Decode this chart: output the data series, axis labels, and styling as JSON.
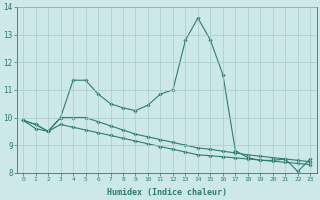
{
  "xlabel": "Humidex (Indice chaleur)",
  "x": [
    0,
    1,
    2,
    3,
    4,
    5,
    6,
    7,
    8,
    9,
    10,
    11,
    12,
    13,
    14,
    15,
    16,
    17,
    18,
    19,
    20,
    21,
    22,
    23
  ],
  "line1": [
    9.9,
    9.75,
    9.5,
    10.0,
    11.35,
    11.35,
    10.85,
    10.5,
    10.35,
    10.25,
    10.45,
    10.85,
    11.0,
    12.8,
    13.6,
    12.8,
    11.55,
    8.8,
    8.55,
    8.45,
    8.45,
    8.5,
    8.05,
    8.5
  ],
  "line2": [
    9.9,
    9.75,
    9.5,
    10.0,
    10.0,
    10.0,
    9.85,
    9.7,
    9.55,
    9.4,
    9.3,
    9.2,
    9.1,
    9.0,
    8.9,
    8.85,
    8.78,
    8.72,
    8.65,
    8.6,
    8.55,
    8.5,
    8.45,
    8.4
  ],
  "line3": [
    9.9,
    9.6,
    9.5,
    9.75,
    9.65,
    9.55,
    9.45,
    9.35,
    9.25,
    9.15,
    9.05,
    8.95,
    8.85,
    8.75,
    8.65,
    8.62,
    8.58,
    8.54,
    8.5,
    8.46,
    8.42,
    8.38,
    8.34,
    8.3
  ],
  "line_color": "#2d7d6e",
  "bg_color": "#cce8e8",
  "grid_color": "#aacccc",
  "ylim": [
    8,
    14
  ],
  "xlim": [
    -0.5,
    23.5
  ],
  "yticks": [
    8,
    9,
    10,
    11,
    12,
    13,
    14
  ],
  "xticks": [
    0,
    1,
    2,
    3,
    4,
    5,
    6,
    7,
    8,
    9,
    10,
    11,
    12,
    13,
    14,
    15,
    16,
    17,
    18,
    19,
    20,
    21,
    22,
    23
  ]
}
